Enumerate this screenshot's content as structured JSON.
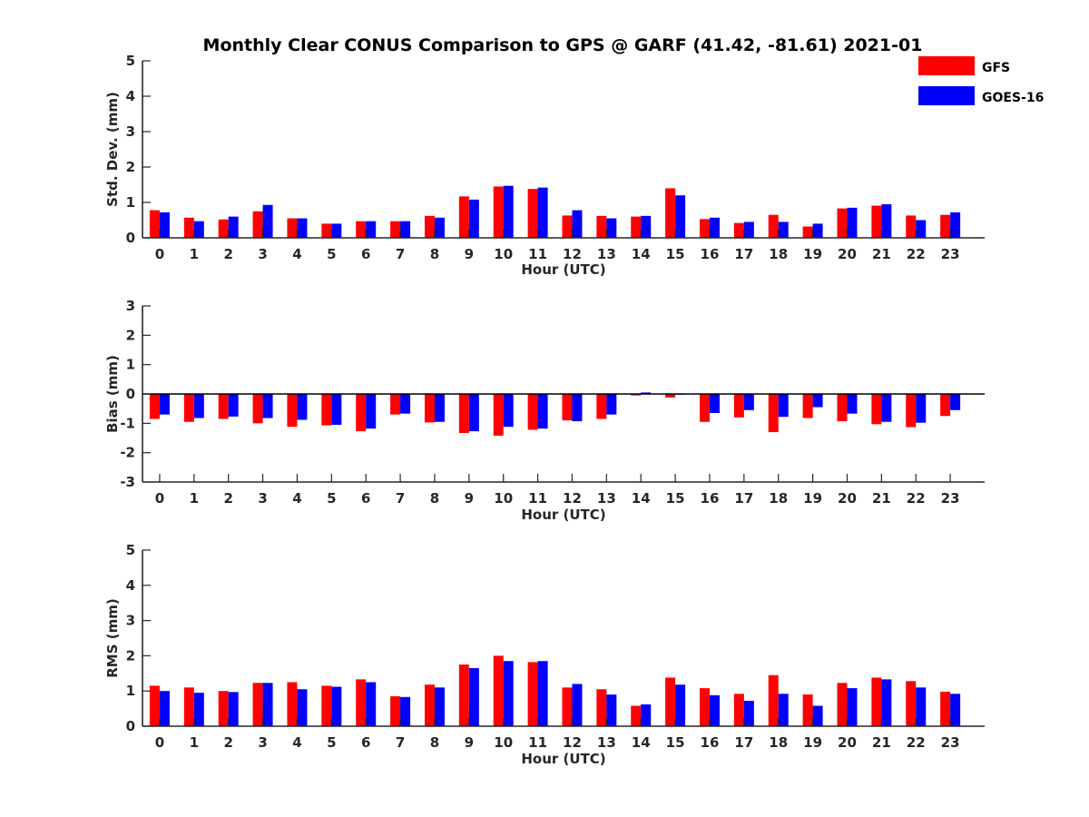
{
  "title": "Monthly Clear CONUS Comparison to GPS @ GARF (41.42, -81.61) 2021-01",
  "legend": [
    {
      "name": "GFS",
      "color": "#ff0000"
    },
    {
      "name": "GOES-16",
      "color": "#0000ff"
    }
  ],
  "chart_data": [
    {
      "type": "bar",
      "xlabel": "Hour (UTC)",
      "ylabel": "Std. Dev. (mm)",
      "ylim": [
        0,
        5
      ],
      "yticks": [
        0,
        1,
        2,
        3,
        4,
        5
      ],
      "categories": [
        "0",
        "1",
        "2",
        "3",
        "4",
        "5",
        "6",
        "7",
        "8",
        "9",
        "10",
        "11",
        "12",
        "13",
        "14",
        "15",
        "16",
        "17",
        "18",
        "19",
        "20",
        "21",
        "22",
        "23"
      ],
      "series": [
        {
          "name": "GFS",
          "values": [
            0.78,
            0.57,
            0.52,
            0.75,
            0.55,
            0.4,
            0.47,
            0.47,
            0.62,
            1.17,
            1.45,
            1.38,
            0.63,
            0.62,
            0.6,
            1.4,
            0.53,
            0.42,
            0.65,
            0.32,
            0.83,
            0.91,
            0.63,
            0.65
          ]
        },
        {
          "name": "GOES-16",
          "values": [
            0.72,
            0.47,
            0.6,
            0.93,
            0.55,
            0.4,
            0.47,
            0.47,
            0.57,
            1.08,
            1.47,
            1.42,
            0.78,
            0.55,
            0.62,
            1.2,
            0.57,
            0.45,
            0.45,
            0.4,
            0.85,
            0.95,
            0.5,
            0.72
          ]
        }
      ]
    },
    {
      "type": "bar",
      "xlabel": "Hour (UTC)",
      "ylabel": "Bias (mm)",
      "ylim": [
        -3,
        3
      ],
      "yticks": [
        -3,
        -2,
        -1,
        0,
        1,
        2,
        3
      ],
      "categories": [
        "0",
        "1",
        "2",
        "3",
        "4",
        "5",
        "6",
        "7",
        "8",
        "9",
        "10",
        "11",
        "12",
        "13",
        "14",
        "15",
        "16",
        "17",
        "18",
        "19",
        "20",
        "21",
        "22",
        "23"
      ],
      "series": [
        {
          "name": "GFS",
          "values": [
            -0.85,
            -0.95,
            -0.85,
            -1.0,
            -1.12,
            -1.07,
            -1.27,
            -0.7,
            -0.97,
            -1.33,
            -1.42,
            -1.22,
            -0.9,
            -0.85,
            -0.05,
            -0.12,
            -0.95,
            -0.8,
            -1.3,
            -0.82,
            -0.93,
            -1.03,
            -1.13,
            -0.75
          ]
        },
        {
          "name": "GOES-16",
          "values": [
            -0.7,
            -0.82,
            -0.77,
            -0.82,
            -0.88,
            -1.05,
            -1.18,
            -0.67,
            -0.95,
            -1.27,
            -1.12,
            -1.18,
            -0.93,
            -0.7,
            0.05,
            0.0,
            -0.65,
            -0.55,
            -0.78,
            -0.45,
            -0.67,
            -0.95,
            -0.98,
            -0.55
          ]
        }
      ]
    },
    {
      "type": "bar",
      "xlabel": "Hour (UTC)",
      "ylabel": "RMS (mm)",
      "ylim": [
        0,
        5
      ],
      "yticks": [
        0,
        1,
        2,
        3,
        4,
        5
      ],
      "categories": [
        "0",
        "1",
        "2",
        "3",
        "4",
        "5",
        "6",
        "7",
        "8",
        "9",
        "10",
        "11",
        "12",
        "13",
        "14",
        "15",
        "16",
        "17",
        "18",
        "19",
        "20",
        "21",
        "22",
        "23"
      ],
      "series": [
        {
          "name": "GFS",
          "values": [
            1.15,
            1.1,
            1.0,
            1.23,
            1.25,
            1.15,
            1.33,
            0.85,
            1.18,
            1.75,
            2.0,
            1.82,
            1.1,
            1.05,
            0.58,
            1.38,
            1.08,
            0.92,
            1.45,
            0.9,
            1.23,
            1.38,
            1.28,
            0.98
          ]
        },
        {
          "name": "GOES-16",
          "values": [
            1.0,
            0.95,
            0.97,
            1.23,
            1.05,
            1.12,
            1.25,
            0.83,
            1.1,
            1.65,
            1.85,
            1.85,
            1.2,
            0.9,
            0.62,
            1.18,
            0.88,
            0.72,
            0.92,
            0.58,
            1.08,
            1.33,
            1.1,
            0.92
          ]
        }
      ]
    }
  ]
}
